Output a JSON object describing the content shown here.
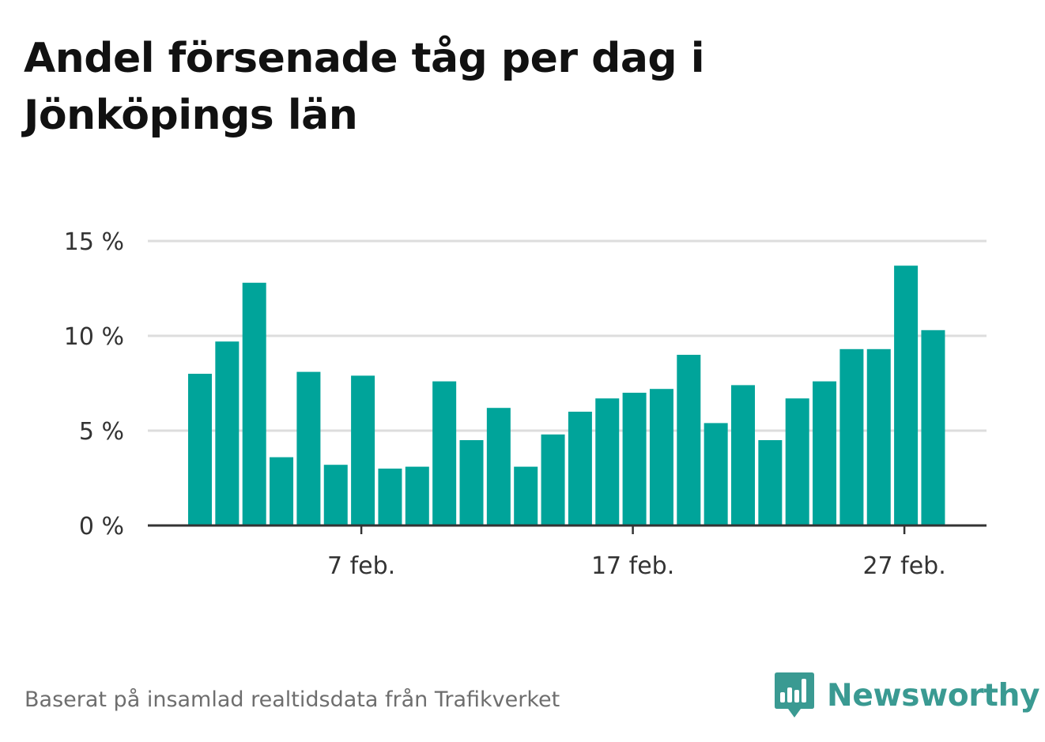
{
  "title": "Andel försenade tåg per dag i Jönköpings län",
  "source": "Baserat på insamlad realtidsdata från Trafikverket",
  "brand": {
    "name": "Newsworthy",
    "logo_icon": "newsworthy-bar-chart-speech-bubble-icon",
    "color": "#3a9a92"
  },
  "colors": {
    "bar": "#00a49a",
    "grid": "#dddddd",
    "axis": "#333333",
    "tick_text": "#333333"
  },
  "chart_data": {
    "type": "bar",
    "x_type": "date",
    "categories": [
      "2024-02-01",
      "2024-02-02",
      "2024-02-03",
      "2024-02-04",
      "2024-02-05",
      "2024-02-06",
      "2024-02-07",
      "2024-02-08",
      "2024-02-09",
      "2024-02-10",
      "2024-02-11",
      "2024-02-12",
      "2024-02-13",
      "2024-02-14",
      "2024-02-15",
      "2024-02-16",
      "2024-02-17",
      "2024-02-18",
      "2024-02-19",
      "2024-02-20",
      "2024-02-21",
      "2024-02-22",
      "2024-02-23",
      "2024-02-24",
      "2024-02-25",
      "2024-02-26",
      "2024-02-27",
      "2024-02-28"
    ],
    "values": [
      8.0,
      9.7,
      12.8,
      3.6,
      8.1,
      3.2,
      7.9,
      3.0,
      3.1,
      7.6,
      4.5,
      6.2,
      3.1,
      4.8,
      6.0,
      6.7,
      7.0,
      7.2,
      9.0,
      5.4,
      7.4,
      4.5,
      6.7,
      7.6,
      9.3,
      9.3,
      13.7,
      10.3
    ],
    "unit": "%",
    "ylim": [
      0,
      15
    ],
    "yticks": [
      0,
      5,
      10,
      15
    ],
    "ytick_labels": [
      "0 %",
      "5 %",
      "10 %",
      "15 %"
    ],
    "xticks": [
      {
        "at": "2024-02-07",
        "label": "7 feb."
      },
      {
        "at": "2024-02-17",
        "label": "17 feb."
      },
      {
        "at": "2024-02-27",
        "label": "27 feb."
      }
    ],
    "grid": true,
    "legend": "none",
    "xlabel": "",
    "ylabel": ""
  }
}
